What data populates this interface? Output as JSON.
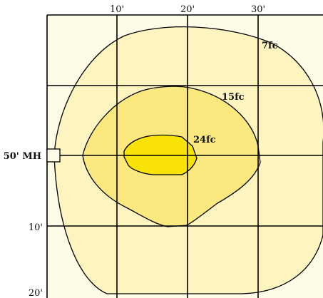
{
  "diagram": {
    "axis_labels": {
      "top": [
        "10'",
        "20'",
        "30'"
      ],
      "left": [
        "10'",
        "20'"
      ]
    },
    "fixture_label": "50' MH",
    "contours": [
      {
        "label": "7fc",
        "fill": "#fdf4bf"
      },
      {
        "label": "15fc",
        "fill": "#fbe97f"
      },
      {
        "label": "24fc",
        "fill": "#f9e208"
      }
    ],
    "colors": {
      "background": "#fefbe6",
      "grid": "#000000"
    }
  }
}
